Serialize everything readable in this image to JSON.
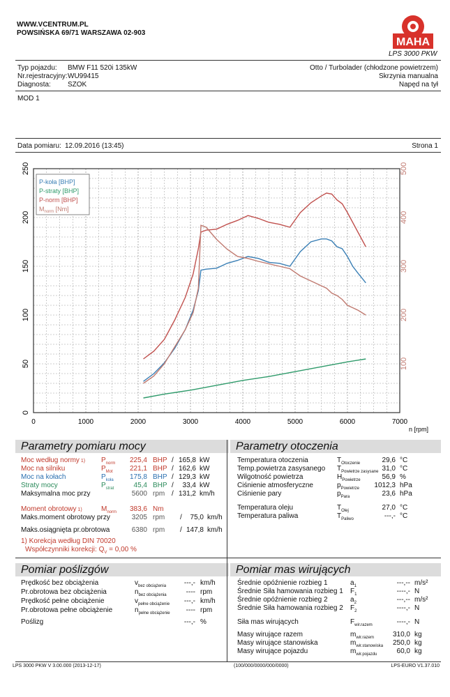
{
  "header": {
    "site": "WWW.VCENTRUM.PL",
    "address": "POWSIŃSKA 69/71 WARSZAWA 02-903",
    "logo_text": "MAHA",
    "model": "LPS 3000 PKW"
  },
  "vehicle": {
    "type_label": "Typ pojazdu:",
    "type_value": "BMW F11 520i 135kW",
    "reg_label": "Nr.rejestracyjny:",
    "reg_value": "WU99415",
    "diag_label": "Diagnosta:",
    "diag_value": "SZOK",
    "engine": "Otto / Turbolader (chłodzone powietrzem)",
    "gearbox": "Skrzynia manualna",
    "drive": "Napęd na tył"
  },
  "mod": "MOD 1",
  "measurement": {
    "date_label": "Data pomiaru:",
    "date_value": "12.09.2016 (13:45)",
    "page": "Strona 1"
  },
  "chart_data": {
    "type": "line",
    "title": "",
    "xlabel": "n [rpm]",
    "xlim": [
      0,
      7000
    ],
    "ylim_left": [
      0,
      250
    ],
    "ylim_right": [
      0,
      500
    ],
    "x_ticks": [
      "0",
      "1000",
      "2000",
      "3000",
      "4000",
      "5000",
      "6000",
      "7000"
    ],
    "y_ticks_left": [
      "0",
      "50",
      "100",
      "150",
      "200",
      "250"
    ],
    "y_ticks_right": [
      "100",
      "200",
      "300",
      "400",
      "500"
    ],
    "legend": [
      "P-koła [BHP]",
      "P-straty [BHP]",
      "P-norm [BHP]",
      "M"
    ],
    "legend_sub": "norm",
    "legend_unit": " [Nm]",
    "series": [
      {
        "name": "P-koła [BHP]",
        "color": "#3a7fb5",
        "axis": "left",
        "x": [
          2100,
          2300,
          2500,
          2700,
          2900,
          3050,
          3150,
          3200,
          3300,
          3500,
          3700,
          3900,
          4100,
          4300,
          4500,
          4700,
          4900,
          5100,
          5300,
          5500,
          5600,
          5700,
          5800,
          5900,
          6000,
          6100,
          6200,
          6350
        ],
        "y": [
          32,
          40,
          51,
          66,
          85,
          105,
          125,
          146,
          147,
          148,
          153,
          156,
          160,
          158,
          154,
          153,
          150,
          165,
          175,
          178,
          178,
          176,
          170,
          168,
          160,
          150,
          143,
          133
        ]
      },
      {
        "name": "P-straty [BHP]",
        "color": "#2e9a6a",
        "axis": "left",
        "x": [
          2100,
          2500,
          3000,
          3500,
          4000,
          4500,
          5000,
          5500,
          6000,
          6350
        ],
        "y": [
          15,
          19,
          23,
          28,
          33,
          37,
          42,
          47,
          52,
          55
        ]
      },
      {
        "name": "P-norm [BHP]",
        "color": "#c0504d",
        "axis": "left",
        "x": [
          2100,
          2300,
          2500,
          2700,
          2900,
          3050,
          3150,
          3200,
          3300,
          3500,
          3700,
          3900,
          4100,
          4300,
          4500,
          4700,
          4900,
          5100,
          5300,
          5500,
          5600,
          5700,
          5800,
          5900,
          6000,
          6100,
          6200,
          6350
        ],
        "y": [
          55,
          63,
          75,
          95,
          118,
          142,
          168,
          185,
          187,
          188,
          193,
          197,
          202,
          199,
          195,
          193,
          190,
          205,
          215,
          222,
          225,
          224,
          218,
          214,
          205,
          195,
          185,
          170
        ]
      },
      {
        "name": "M [Nm]",
        "color": "#c07a70",
        "axis": "right",
        "x": [
          2100,
          2300,
          2500,
          2700,
          2900,
          3050,
          3150,
          3200,
          3300,
          3500,
          3700,
          3900,
          4100,
          4300,
          4500,
          4700,
          4900,
          5100,
          5300,
          5500,
          5600,
          5700,
          5800,
          5900,
          6000,
          6100,
          6200,
          6350
        ],
        "y": [
          60,
          75,
          100,
          135,
          170,
          205,
          255,
          384,
          380,
          355,
          335,
          320,
          316,
          310,
          305,
          300,
          295,
          280,
          270,
          260,
          255,
          245,
          240,
          232,
          220,
          215,
          210,
          200
        ]
      }
    ]
  },
  "params": {
    "title": "Parametry pomiaru mocy",
    "rows": [
      {
        "label": "Moc według normy",
        "note": "1)",
        "sym": "P",
        "sub": "norm",
        "v1": "225,4",
        "u1": "BHP",
        "sep": "/",
        "v2": "165,8",
        "u2": "kW",
        "color": "red"
      },
      {
        "label": "Moc na silniku",
        "note": "",
        "sym": "P",
        "sub": "Mot",
        "v1": "221,1",
        "u1": "BHP",
        "sep": "/",
        "v2": "162,6",
        "u2": "kW",
        "color": "red"
      },
      {
        "label": "Moc na kołach",
        "note": "",
        "sym": "P",
        "sub": "koła",
        "v1": "175,8",
        "u1": "BHP",
        "sep": "/",
        "v2": "129,3",
        "u2": "kW",
        "color": "blue"
      },
      {
        "label": "Straty mocy",
        "note": "",
        "sym": "P",
        "sub": "strat",
        "v1": "45,4",
        "u1": "BHP",
        "sep": "/",
        "v2": "33,4",
        "u2": "kW",
        "color": "green"
      },
      {
        "label": "Maksymalna moc przy",
        "note": "",
        "sym": "",
        "sub": "",
        "v1": "5600",
        "u1": "rpm",
        "sep": "/",
        "v2": "131,2",
        "u2": "km/h",
        "color": "black"
      }
    ],
    "rows2": [
      {
        "label": "Moment obrotowy",
        "note": "1)",
        "sym": "M",
        "sub": "norm",
        "v1": "383,6",
        "u1": "Nm",
        "sep": "",
        "v2": "",
        "u2": "",
        "color": "red"
      },
      {
        "label": "Maks.moment obrotowy przy",
        "note": "",
        "sym": "",
        "sub": "",
        "v1": "3205",
        "u1": "rpm",
        "sep": "/",
        "v2": "75,0",
        "u2": "km/h",
        "color": "black"
      },
      {
        "label": "Maks.osiągnięta pr.obrotowa",
        "note": "",
        "sym": "",
        "sub": "",
        "v1": "6380",
        "u1": "rpm",
        "sep": "/",
        "v2": "147,8",
        "u2": "km/h",
        "color": "black"
      }
    ],
    "note1": "1) Korekcja według DIN 70020",
    "note2": "Współczynniki korekcji: Q",
    "note2_sub": "V",
    "note2_val": "= 0,00 %"
  },
  "env": {
    "title": "Parametry otoczenia",
    "rows": [
      {
        "label": "Temperatura otoczenia",
        "sym": "T",
        "sub": "Otoczenie",
        "val": "29,6",
        "unit": "°C"
      },
      {
        "label": "Temp.powietrza zasysanego",
        "sym": "T",
        "sub": "Powietrze zasysane",
        "val": "31,0",
        "unit": "°C"
      },
      {
        "label": "Wilgotność powietrza",
        "sym": "H",
        "sub": "Powietrze",
        "val": "56,9",
        "unit": "%"
      },
      {
        "label": "Ciśnienie atmosferyczne",
        "sym": "p",
        "sub": "Powietrze",
        "val": "1012,3",
        "unit": "hPa"
      },
      {
        "label": "Ciśnienie pary",
        "sym": "p",
        "sub": "Para",
        "val": "23,6",
        "unit": "hPa"
      },
      {
        "label": "Temperatura oleju",
        "sym": "T",
        "sub": "Olej",
        "val": "27,0",
        "unit": "°C"
      },
      {
        "label": "Temperatura paliwa",
        "sym": "T",
        "sub": "Paliwo",
        "val": "---,-",
        "unit": "°C"
      }
    ]
  },
  "slip": {
    "title": "Pomiar poślizgów",
    "rows": [
      {
        "label": "Prędkość bez obciążenia",
        "sym": "v",
        "sub": "bez obciążenia",
        "val": "---,-",
        "unit": "km/h"
      },
      {
        "label": "Pr.obrotowa bez obciążenia",
        "sym": "n",
        "sub": "bez obciążenia",
        "val": "----",
        "unit": "rpm"
      },
      {
        "label": "Prędkość pełne obciążenie",
        "sym": "v",
        "sub": "pełne obciążenie",
        "val": "---,-",
        "unit": "km/h"
      },
      {
        "label": "Pr.obrotowa pełne obciążenie",
        "sym": "n",
        "sub": "pełne obciążenie",
        "val": "----",
        "unit": "rpm"
      },
      {
        "label": "Poślizg",
        "sym": "",
        "sub": "",
        "val": "---,-",
        "unit": "%"
      }
    ]
  },
  "mass": {
    "title": "Pomiar mas wirujących",
    "rows": [
      {
        "label": "Średnie opóźnienie rozbieg 1",
        "sym": "a",
        "sub": "1",
        "val": "---,--",
        "unit": "m/s²"
      },
      {
        "label": "Średnie Siła hamowania rozbieg 1",
        "sym": "F",
        "sub": "1",
        "val": "----,-",
        "unit": "N"
      },
      {
        "label": "Średnie opóźnienie rozbieg 2",
        "sym": "a",
        "sub": "2",
        "val": "---,--",
        "unit": "m/s²"
      },
      {
        "label": "Średnie Siła hamowania rozbieg 2",
        "sym": "F",
        "sub": "2",
        "val": "----,-",
        "unit": "N"
      },
      {
        "label": "Siła mas wirujących",
        "sym": "F",
        "sub": "wir.razem",
        "val": "----,-",
        "unit": "N"
      },
      {
        "label": "Masy wirujące razem",
        "sym": "m",
        "sub": "wir.razem",
        "val": "310,0",
        "unit": "kg"
      },
      {
        "label": "Masy wirujące stanowiska",
        "sym": "m",
        "sub": "wir.stanowiska",
        "val": "250,0",
        "unit": "kg"
      },
      {
        "label": "Masy wirujące pojazdu",
        "sym": "m",
        "sub": "wir.pojazdu",
        "val": "60,0",
        "unit": "kg"
      }
    ]
  },
  "footer": {
    "left": "LPS 3000 PKW V 3.00.000 (2013-12-17)",
    "center": "(100/000/0000/000/0000)",
    "right": "LPS-EURO V1.37.010"
  }
}
